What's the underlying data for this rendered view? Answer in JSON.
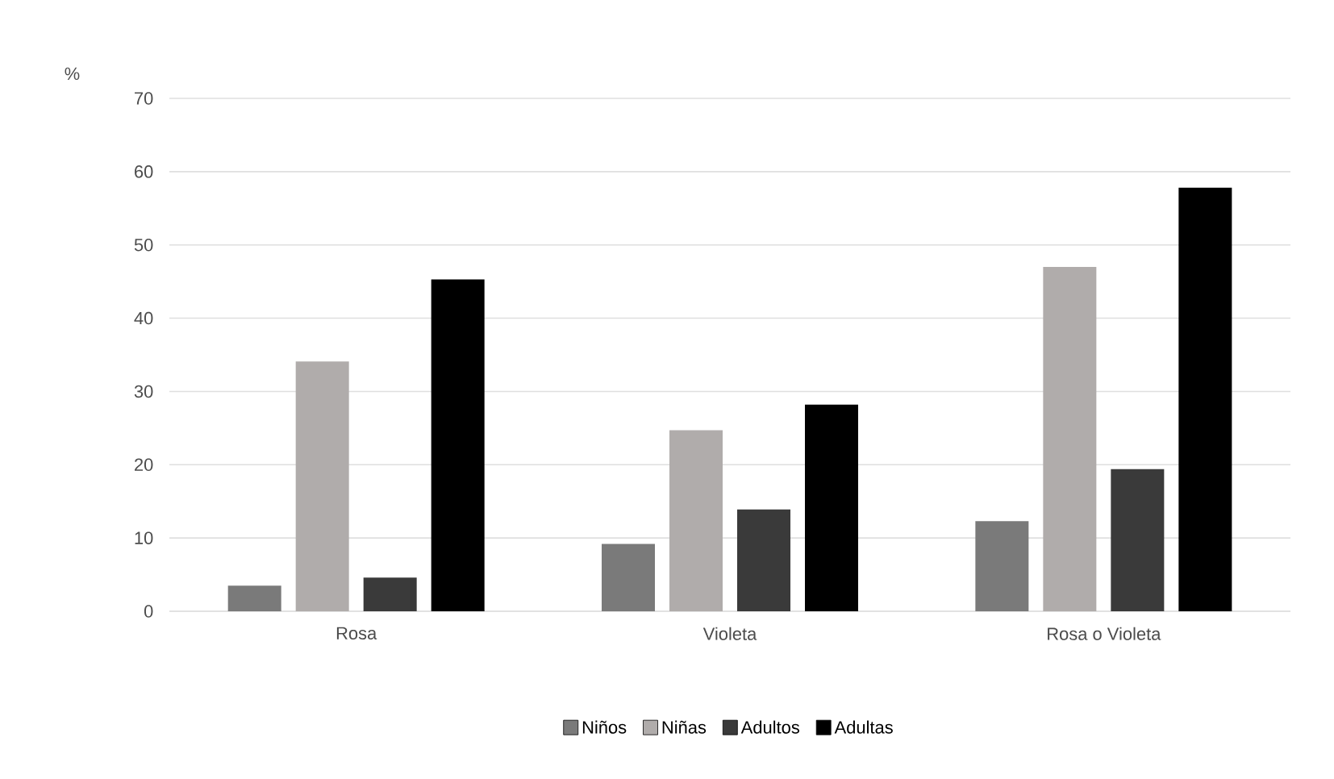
{
  "chart_data": {
    "type": "bar",
    "ylabel": "%",
    "categories": [
      "Rosa",
      "Violeta",
      "Rosa o Violeta"
    ],
    "series": [
      {
        "name": "Niños",
        "color": "#7a7a7a",
        "values": [
          3.5,
          9.2,
          12.3
        ]
      },
      {
        "name": "Niñas",
        "color": "#b0acab",
        "values": [
          34.1,
          24.7,
          47.0
        ]
      },
      {
        "name": "Adultos",
        "color": "#3a3a3a",
        "values": [
          4.6,
          13.9,
          19.4
        ]
      },
      {
        "name": "Adultas",
        "color": "#000000",
        "values": [
          45.3,
          28.2,
          57.8
        ]
      }
    ],
    "ylim": [
      0,
      70
    ],
    "yticks": [
      0,
      10,
      20,
      30,
      40,
      50,
      60,
      70
    ],
    "grid": "y",
    "legend": "bottom"
  }
}
